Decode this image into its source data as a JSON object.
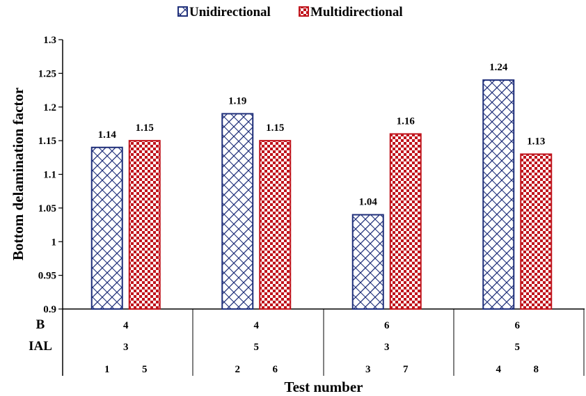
{
  "chart_data": {
    "type": "bar",
    "ylabel": "Bottom delamination factor",
    "xlabel": "Test number",
    "ylim": [
      0.9,
      1.3
    ],
    "yticks": [
      "0.9",
      "0.95",
      "1",
      "1.05",
      "1.1",
      "1.15",
      "1.2",
      "1.25",
      "1.3"
    ],
    "grid": false,
    "legend_position": "top-center",
    "series": [
      {
        "name": "Unidirectional",
        "color": "#1f2f7a",
        "pattern": "diagonal-crosshatch",
        "values": [
          1.14,
          1.19,
          1.04,
          1.24
        ],
        "labels": [
          "1.14",
          "1.19",
          "1.04",
          "1.24"
        ],
        "test_numbers": [
          "1",
          "2",
          "3",
          "4"
        ]
      },
      {
        "name": "Multidirectional",
        "color": "#c0141c",
        "pattern": "checkerboard",
        "values": [
          1.15,
          1.15,
          1.16,
          1.13
        ],
        "labels": [
          "1.15",
          "1.15",
          "1.16",
          "1.13"
        ],
        "test_numbers": [
          "5",
          "6",
          "7",
          "8"
        ]
      }
    ],
    "table_rows": [
      {
        "label": "B",
        "values": [
          "4",
          "4",
          "6",
          "6"
        ]
      },
      {
        "label": "IAL",
        "values": [
          "3",
          "5",
          "3",
          "5"
        ]
      }
    ]
  }
}
